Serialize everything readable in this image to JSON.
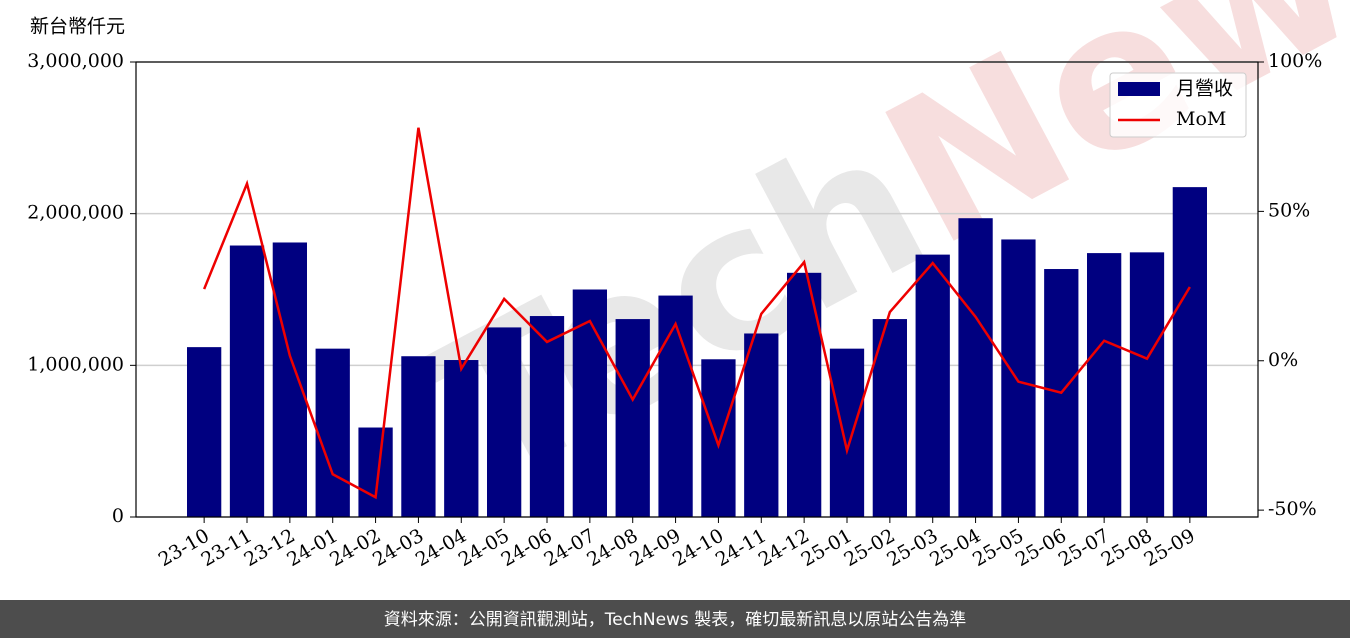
{
  "chart_data": {
    "type": "bar_line",
    "y_label": "新台幣仟元",
    "categories": [
      "23-10",
      "23-11",
      "23-12",
      "24-01",
      "24-02",
      "24-03",
      "24-04",
      "24-05",
      "24-06",
      "24-07",
      "24-08",
      "24-09",
      "24-10",
      "24-11",
      "24-12",
      "25-01",
      "25-02",
      "25-03",
      "25-04",
      "25-05",
      "25-06",
      "25-07",
      "25-08",
      "25-09"
    ],
    "series": [
      {
        "name": "月營收",
        "type": "bar",
        "color": "#000080",
        "values": [
          1120000,
          1790000,
          1810000,
          1110000,
          590000,
          1060000,
          1035000,
          1250000,
          1325000,
          1500000,
          1305000,
          1460000,
          1040000,
          1210000,
          1610000,
          1110000,
          1305000,
          1730000,
          1970000,
          1830000,
          1635000,
          1740000,
          1745000,
          2175000
        ]
      },
      {
        "name": "MoM",
        "type": "line",
        "axis": "y2",
        "color": "#ee0000",
        "values": [
          24,
          59.3,
          1.7,
          -38,
          -45.7,
          78,
          -2.7,
          20.7,
          6.3,
          13.3,
          -13,
          12.3,
          -28.3,
          15.7,
          33,
          -30,
          16.3,
          32.7,
          14.7,
          -7,
          -10.7,
          6.7,
          0.7,
          24.7
        ]
      }
    ],
    "ylim": [
      0,
      3000000
    ],
    "yticks": [
      0,
      {
        "value": 1000000,
        "label": "1,000,000"
      },
      {
        "value": 2000000,
        "label": "2,000,000"
      },
      {
        "value": 3000000,
        "label": "3,000,000"
      }
    ],
    "y2lim": [
      -52.3,
      100
    ],
    "y2ticks": [
      {
        "value": -50,
        "label": "-50%"
      },
      {
        "value": 0,
        "label": "0%"
      },
      {
        "value": 50,
        "label": "50%"
      },
      {
        "value": 100,
        "label": "100%"
      }
    ],
    "grid": true,
    "legend": "upper right",
    "footer": "資料來源：公開資訊觀測站，TechNews 製表，確切最新訊息以原站公告為準"
  }
}
